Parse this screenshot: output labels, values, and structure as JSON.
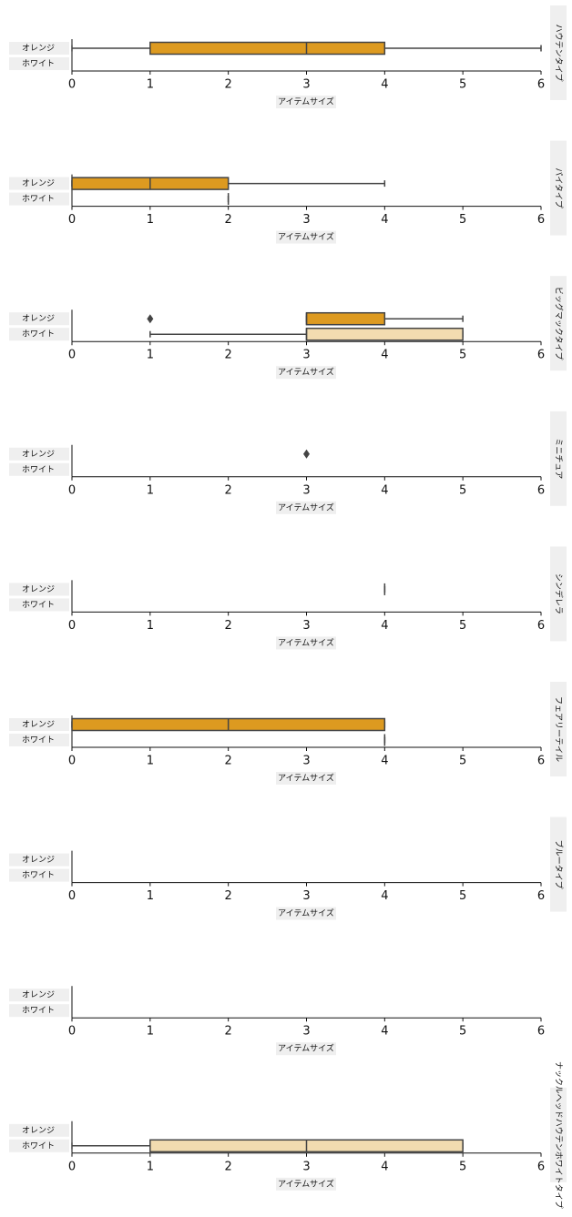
{
  "chart_data": [
    {
      "type": "box",
      "facet": "ハウテンタイプ",
      "x_label": "アイテムサイズ",
      "categories": [
        "オレンジ",
        "ホワイト"
      ],
      "xlim": [
        0,
        6
      ],
      "xticks": [
        0,
        1,
        2,
        3,
        4,
        5,
        6
      ],
      "boxes": [
        {
          "color": "#dd9a20",
          "min": 0,
          "q1": 1,
          "median": 3,
          "q3": 4,
          "max": 6,
          "outliers": []
        },
        null
      ]
    },
    {
      "type": "box",
      "facet": "パイタイプ",
      "x_label": "アイテムサイズ",
      "categories": [
        "オレンジ",
        "ホワイト"
      ],
      "xlim": [
        0,
        6
      ],
      "xticks": [
        0,
        1,
        2,
        3,
        4,
        5,
        6
      ],
      "boxes": [
        {
          "color": "#dd9a20",
          "min": 0,
          "q1": 0,
          "median": 1,
          "q3": 2,
          "max": 4,
          "outliers": []
        },
        {
          "color": "#f2dcb0",
          "min": 2,
          "q1": 2,
          "median": 2,
          "q3": 2,
          "max": 2,
          "outliers": []
        }
      ]
    },
    {
      "type": "box",
      "facet": "ビッグマックタイプ",
      "x_label": "アイテムサイズ",
      "categories": [
        "オレンジ",
        "ホワイト"
      ],
      "xlim": [
        0,
        6
      ],
      "xticks": [
        0,
        1,
        2,
        3,
        4,
        5,
        6
      ],
      "boxes": [
        {
          "color": "#dd9a20",
          "min": 3,
          "q1": 3,
          "median": 3,
          "q3": 4,
          "max": 5,
          "outliers": [
            1
          ]
        },
        {
          "color": "#f2dcb0",
          "min": 1,
          "q1": 3,
          "median": 3,
          "q3": 5,
          "max": 5,
          "outliers": []
        }
      ]
    },
    {
      "type": "box",
      "facet": "ミニチュア",
      "x_label": "アイテムサイズ",
      "categories": [
        "オレンジ",
        "ホワイト"
      ],
      "xlim": [
        0,
        6
      ],
      "xticks": [
        0,
        1,
        2,
        3,
        4,
        5,
        6
      ],
      "boxes": [
        {
          "color": "#dd9a20",
          "min": null,
          "q1": null,
          "median": null,
          "q3": null,
          "max": null,
          "outliers": [
            3
          ]
        },
        null
      ]
    },
    {
      "type": "box",
      "facet": "シンデレラ",
      "x_label": "アイテムサイズ",
      "categories": [
        "オレンジ",
        "ホワイト"
      ],
      "xlim": [
        0,
        6
      ],
      "xticks": [
        0,
        1,
        2,
        3,
        4,
        5,
        6
      ],
      "boxes": [
        {
          "color": "#dd9a20",
          "min": 4,
          "q1": 4,
          "median": 4,
          "q3": 4,
          "max": 4,
          "outliers": []
        },
        null
      ]
    },
    {
      "type": "box",
      "facet": "フェアリーテイル",
      "x_label": "アイテムサイズ",
      "categories": [
        "オレンジ",
        "ホワイト"
      ],
      "xlim": [
        0,
        6
      ],
      "xticks": [
        0,
        1,
        2,
        3,
        4,
        5,
        6
      ],
      "boxes": [
        {
          "color": "#dd9a20",
          "min": 0,
          "q1": 0,
          "median": 2,
          "q3": 4,
          "max": 4,
          "outliers": []
        },
        {
          "color": "#f2dcb0",
          "min": 4,
          "q1": 4,
          "median": 4,
          "q3": 4,
          "max": 4,
          "outliers": []
        }
      ]
    },
    {
      "type": "box",
      "facet": "ブルータイプ",
      "x_label": "アイテムサイズ",
      "categories": [
        "オレンジ",
        "ホワイト"
      ],
      "xlim": [
        0,
        6
      ],
      "xticks": [
        0,
        1,
        2,
        3,
        4,
        5,
        6
      ],
      "boxes": [
        null,
        null
      ]
    },
    {
      "type": "box",
      "x_label": "アイテムサイズ",
      "categories": [
        "オレンジ",
        "ホワイト"
      ],
      "xlim": [
        0,
        6
      ],
      "xticks": [
        0,
        1,
        2,
        3,
        4,
        5,
        6
      ],
      "boxes": [
        null,
        null
      ]
    },
    {
      "type": "box",
      "facet": "ナックルヘッドハウテンホワイトタイプ",
      "x_label": "アイテムサイズ",
      "categories": [
        "オレンジ",
        "ホワイト"
      ],
      "xlim": [
        0,
        6
      ],
      "xticks": [
        0,
        1,
        2,
        3,
        4,
        5,
        6
      ],
      "boxes": [
        null,
        {
          "color": "#f2dcb0",
          "min": 0,
          "q1": 1,
          "median": 3,
          "q3": 5,
          "max": 5,
          "outliers": []
        }
      ]
    }
  ]
}
